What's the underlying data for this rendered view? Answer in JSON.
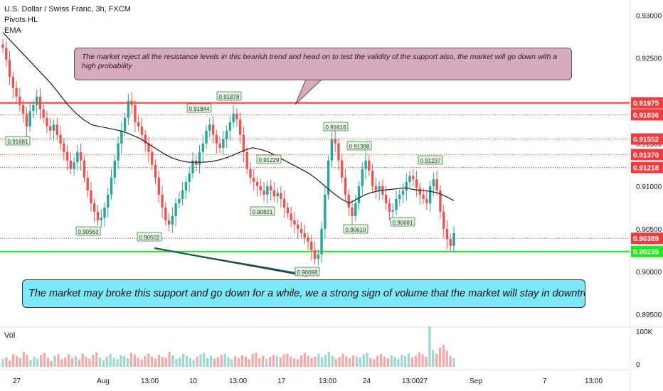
{
  "title": "U.S. Dollar / Swiss Franc, 3h, FXCM",
  "indicators": [
    "Pivots HL",
    "EMA"
  ],
  "volume_label": "Vol",
  "annotations": {
    "top": "The market reject all the resistance levels in this bearish trend and head on to test the validity of the support also, the market will go down with a high probability",
    "bottom": "The market may broke this support and go down for a while, we a strong sign of volume that the market will stay in downtrend"
  },
  "colors": {
    "up": "#26a69a",
    "down": "#ef5350",
    "resistance": "#f03c3c",
    "support": "#1fe81f",
    "ema": "#1b1b1b",
    "pivot_label_bg": "#e3f4e3",
    "top_note_bg": "#d9a9bd",
    "bottom_note_bg": "#7ee8fb"
  },
  "chart_data": {
    "type": "candlestick",
    "title": "U.S. Dollar / Swiss Franc, 3h, FXCM",
    "ylim": [
      0.8935,
      0.9318
    ],
    "y_ticks": [
      "0.93000",
      "0.92500",
      "0.92000",
      "0.91500",
      "0.91000",
      "0.90500",
      "0.90000",
      "0.89500"
    ],
    "x_ticks": [
      "27",
      "Aug",
      "13:00",
      "10",
      "13:00",
      "17",
      "13:00",
      "24",
      "13:00",
      "27",
      "Sep",
      "7",
      "13:00"
    ],
    "horizontal_levels": [
      {
        "label": "0.91975",
        "value": 0.91975,
        "style": "solid",
        "color": "#f03c3c",
        "highlight": true
      },
      {
        "label": "0.91836",
        "value": 0.91836,
        "style": "dotted",
        "color": "#f03c3c",
        "highlight": true
      },
      {
        "label": "0.91552",
        "value": 0.91552,
        "style": "dotted",
        "color": "#f03c3c",
        "highlight": true
      },
      {
        "label": "0.91370",
        "value": 0.9137,
        "style": "dotted",
        "color": "#f03c3c",
        "highlight": true
      },
      {
        "label": "0.91218",
        "value": 0.91218,
        "style": "dotted",
        "color": "#f03c3c",
        "highlight": true
      },
      {
        "label": "0.90389",
        "value": 0.90389,
        "style": "dotted",
        "color": "#f03c3c",
        "highlight": true
      },
      {
        "label": "0.90235",
        "value": 0.90235,
        "style": "solid",
        "color": "#1fe81f",
        "highlight": true
      }
    ],
    "pivots": [
      {
        "label": "0.91681",
        "value": 0.91681
      },
      {
        "label": "0.90563",
        "value": 0.90563
      },
      {
        "label": "0.90502",
        "value": 0.90502
      },
      {
        "label": "0.91844",
        "value": 0.91844
      },
      {
        "label": "0.91878",
        "value": 0.91878
      },
      {
        "label": "0.91229",
        "value": 0.91229
      },
      {
        "label": "0.90821",
        "value": 0.90821
      },
      {
        "label": "0.90098",
        "value": 0.90098
      },
      {
        "label": "0.91616",
        "value": 0.91616
      },
      {
        "label": "0.91398",
        "value": 0.91398
      },
      {
        "label": "0.90610",
        "value": 0.9061
      },
      {
        "label": "0.90681",
        "value": 0.90681
      },
      {
        "label": "0.91237",
        "value": 0.91237
      }
    ],
    "price_path": [
      0.9262,
      0.9248,
      0.9228,
      0.9215,
      0.9205,
      0.9195,
      0.9185,
      0.917,
      0.9188,
      0.9195,
      0.9205,
      0.919,
      0.918,
      0.917,
      0.9165,
      0.9172,
      0.916,
      0.915,
      0.914,
      0.913,
      0.912,
      0.9128,
      0.914,
      0.913,
      0.911,
      0.9095,
      0.908,
      0.907,
      0.906,
      0.9063,
      0.9075,
      0.909,
      0.911,
      0.913,
      0.915,
      0.9165,
      0.918,
      0.92,
      0.9195,
      0.9175,
      0.917,
      0.916,
      0.915,
      0.914,
      0.9125,
      0.911,
      0.909,
      0.9075,
      0.906,
      0.9055,
      0.9065,
      0.908,
      0.9085,
      0.9095,
      0.9105,
      0.9115,
      0.913,
      0.9125,
      0.914,
      0.915,
      0.9165,
      0.9172,
      0.916,
      0.915,
      0.9145,
      0.9155,
      0.9165,
      0.9175,
      0.9185,
      0.9178,
      0.916,
      0.914,
      0.912,
      0.911,
      0.9105,
      0.91,
      0.9095,
      0.909,
      0.91,
      0.9095,
      0.9088,
      0.9092,
      0.9085,
      0.9075,
      0.9068,
      0.906,
      0.9055,
      0.905,
      0.9045,
      0.904,
      0.9035,
      0.9025,
      0.9015,
      0.902,
      0.905,
      0.909,
      0.913,
      0.9155,
      0.915,
      0.913,
      0.911,
      0.909,
      0.9075,
      0.9065,
      0.908,
      0.91,
      0.912,
      0.913,
      0.9118,
      0.91,
      0.9095,
      0.91,
      0.909,
      0.908,
      0.907,
      0.9072,
      0.9085,
      0.909,
      0.9095,
      0.9105,
      0.9112,
      0.9108,
      0.9098,
      0.909,
      0.9085,
      0.908,
      0.91,
      0.9108,
      0.9095,
      0.907,
      0.905,
      0.9038,
      0.903,
      0.9045
    ],
    "ema_path": [
      0.928,
      0.927,
      0.926,
      0.925,
      0.924,
      0.923,
      0.922,
      0.9208,
      0.9196,
      0.9186,
      0.9178,
      0.9172,
      0.917,
      0.9168,
      0.9166,
      0.9164,
      0.916,
      0.9156,
      0.915,
      0.9144,
      0.9138,
      0.9133,
      0.913,
      0.9128,
      0.9128,
      0.9128,
      0.9129,
      0.9131,
      0.9134,
      0.9138,
      0.9142,
      0.9145,
      0.9143,
      0.914,
      0.9135,
      0.913,
      0.9125,
      0.912,
      0.9115,
      0.9108,
      0.91,
      0.9092,
      0.9085,
      0.908,
      0.9085,
      0.909,
      0.9093,
      0.9095,
      0.9096,
      0.9097,
      0.9098,
      0.9096,
      0.9095,
      0.9094,
      0.9092,
      0.9088,
      0.9083
    ],
    "volume": [
      18,
      22,
      15,
      30,
      25,
      20,
      35,
      28,
      16,
      24,
      19,
      27,
      33,
      21,
      14,
      26,
      30,
      18,
      22,
      29,
      20,
      25,
      17,
      31,
      23,
      19,
      28,
      34,
      22,
      16,
      24,
      30,
      21,
      18,
      27,
      25,
      20,
      33,
      29,
      22,
      17,
      26,
      31,
      24,
      19,
      28,
      23,
      21,
      35,
      27,
      18,
      22,
      30,
      25,
      20,
      16,
      24,
      29,
      33,
      21,
      26,
      19,
      23,
      28,
      31,
      22,
      17,
      25,
      20,
      27,
      24,
      18,
      30,
      34,
      21,
      26,
      19,
      23,
      28,
      25,
      22,
      29,
      31,
      24,
      20,
      18,
      27,
      33,
      26,
      21,
      24,
      30,
      22,
      28,
      35,
      26,
      19,
      23,
      31,
      25,
      20,
      27,
      24,
      22,
      29,
      33,
      21,
      18,
      26,
      30,
      24,
      20,
      27,
      23,
      19,
      28,
      25,
      31,
      22,
      26,
      34,
      29,
      24,
      95,
      40,
      30,
      45,
      52,
      38,
      25,
      20
    ],
    "volume_axis": [
      "100K",
      "0"
    ]
  }
}
